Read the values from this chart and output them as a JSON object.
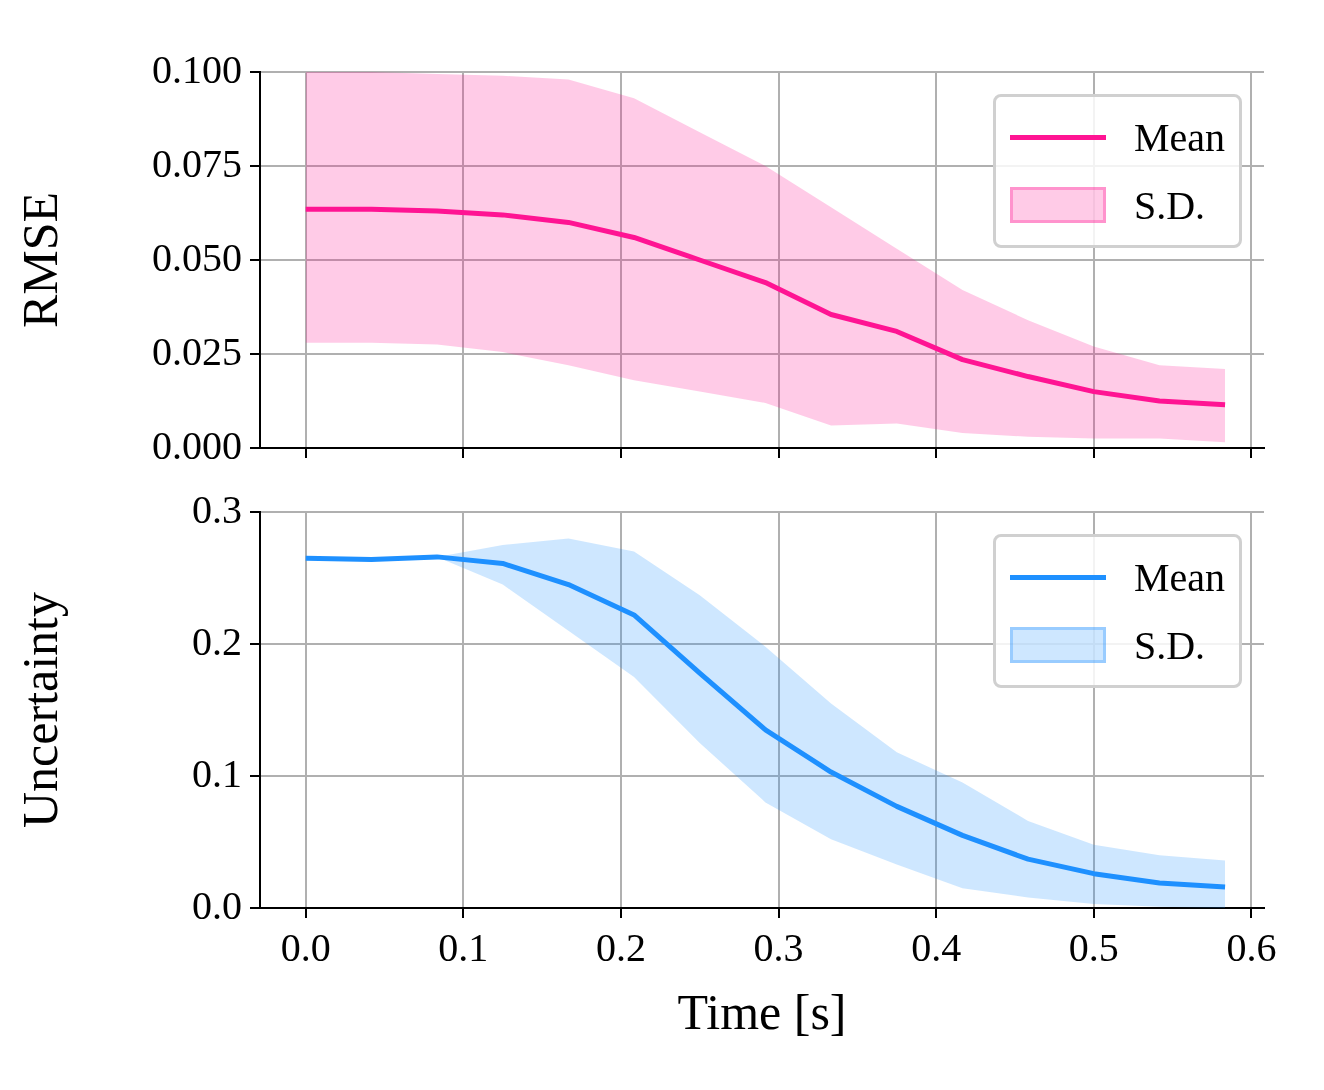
{
  "chart_data": [
    {
      "type": "line",
      "ylabel": "RMSE",
      "annotations": [
        "S.D."
      ],
      "x": [
        0,
        0.0417,
        0.0833,
        0.125,
        0.1667,
        0.2083,
        0.25,
        0.2917,
        0.3333,
        0.375,
        0.4167,
        0.4583,
        0.5,
        0.5417,
        0.5833
      ],
      "series": [
        {
          "name": "Mean",
          "color": "#ff1493",
          "values": [
            0.0635,
            0.0635,
            0.063,
            0.062,
            0.06,
            0.056,
            0.05,
            0.044,
            0.0355,
            0.031,
            0.0235,
            0.019,
            0.015,
            0.0125,
            0.0115
          ],
          "lower": [
            0.028,
            0.028,
            0.0275,
            0.0255,
            0.022,
            0.018,
            0.015,
            0.012,
            0.006,
            0.0065,
            0.004,
            0.003,
            0.0025,
            0.0025,
            0.0015
          ],
          "upper": [
            0.1,
            0.1,
            0.0995,
            0.099,
            0.098,
            0.093,
            0.084,
            0.075,
            0.064,
            0.053,
            0.042,
            0.034,
            0.027,
            0.022,
            0.021
          ]
        }
      ],
      "xlim": [
        -0.029,
        0.608
      ],
      "xticks": [
        0,
        0.1,
        0.2,
        0.3,
        0.4,
        0.5,
        0.6
      ],
      "ylim": [
        0,
        0.1
      ],
      "yticks": [
        {
          "value": 0,
          "label": "0.000"
        },
        {
          "value": 0.025,
          "label": "0.025"
        },
        {
          "value": 0.05,
          "label": "0.050"
        },
        {
          "value": 0.075,
          "label": "0.075"
        },
        {
          "value": 0.1,
          "label": "0.100"
        }
      ],
      "tick_labels": "y",
      "grid": true,
      "legend": "top right"
    },
    {
      "type": "line",
      "xlabel": "Time [s]",
      "ylabel": "Uncertainty",
      "annotations": [
        "S.D."
      ],
      "x": [
        0,
        0.0417,
        0.0833,
        0.125,
        0.1667,
        0.2083,
        0.25,
        0.2917,
        0.3333,
        0.375,
        0.4167,
        0.4583,
        0.5,
        0.5417,
        0.5833
      ],
      "series": [
        {
          "name": "Mean",
          "color": "#1e90ff",
          "values": [
            0.265,
            0.264,
            0.266,
            0.261,
            0.245,
            0.222,
            0.178,
            0.135,
            0.103,
            0.077,
            0.055,
            0.037,
            0.026,
            0.019,
            0.016
          ],
          "lower": [
            0.265,
            0.264,
            0.266,
            0.245,
            0.21,
            0.175,
            0.125,
            0.08,
            0.052,
            0.033,
            0.015,
            0.008,
            0.003,
            0.001,
            0.0
          ],
          "upper": [
            0.265,
            0.264,
            0.266,
            0.275,
            0.28,
            0.27,
            0.237,
            0.198,
            0.155,
            0.118,
            0.095,
            0.066,
            0.048,
            0.04,
            0.036
          ]
        }
      ],
      "xlim": [
        -0.029,
        0.608
      ],
      "xticks": [
        {
          "value": 0,
          "label": "0.0"
        },
        0.1,
        0.2,
        0.3,
        0.4,
        0.5,
        0.6
      ],
      "ylim": [
        0,
        0.3
      ],
      "yticks": [
        {
          "value": 0,
          "label": "0.0"
        },
        0.1,
        0.2,
        0.3
      ],
      "grid": true,
      "legend": "top right"
    }
  ]
}
